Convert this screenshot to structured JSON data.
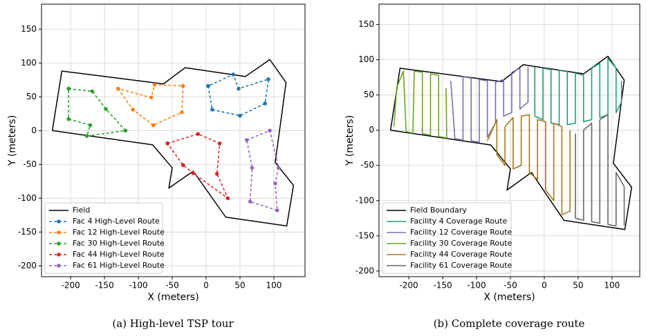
{
  "chart_data": [
    {
      "type": "line",
      "caption": "(a) High-level TSP tour",
      "xlabel": "X (meters)",
      "ylabel": "Y (meters)",
      "xlim": [
        -243,
        146
      ],
      "ylim": [
        -216,
        187
      ],
      "xticks": [
        -200,
        -150,
        -100,
        -50,
        0,
        50,
        100
      ],
      "yticks": [
        -200,
        -150,
        -100,
        -50,
        0,
        50,
        100,
        150
      ],
      "grid": true,
      "legend": "lower left",
      "series": [
        {
          "name": "Field",
          "color": "#000000",
          "linestyle": "solid",
          "marker": "none",
          "x": [
            -227,
            -213,
            -63,
            -31,
            58,
            94,
            118,
            102,
            129,
            119,
            29,
            -19,
            -55,
            -50,
            -79,
            -227
          ],
          "values": [
            0,
            88,
            69,
            93,
            80,
            105,
            71,
            -47,
            -81,
            -141,
            -128,
            -60,
            -85,
            -55,
            -21,
            0
          ]
        },
        {
          "name": "Fac 4 High-Level Route",
          "color": "#1f77b4",
          "linestyle": "dashed",
          "marker": "o",
          "x": [
            3,
            9,
            50,
            87,
            92,
            48,
            40,
            3
          ],
          "values": [
            66,
            31,
            22,
            40,
            76,
            62,
            83,
            66
          ]
        },
        {
          "name": "Fac 12 High-Level Route",
          "color": "#ff7f0e",
          "linestyle": "dashed",
          "marker": "o",
          "x": [
            -130,
            -108,
            -78,
            -36,
            -34,
            -76,
            -81,
            -130
          ],
          "values": [
            62,
            31,
            8,
            27,
            66,
            68,
            49,
            62
          ]
        },
        {
          "name": "Fac 30 High-Level Route",
          "color": "#2ca02c",
          "linestyle": "dashed",
          "marker": "o",
          "x": [
            -203,
            -168,
            -148,
            -119,
            -176,
            -171,
            -203,
            -203
          ],
          "values": [
            62,
            58,
            32,
            0,
            -8,
            8,
            17,
            62
          ]
        },
        {
          "name": "Fac 44 High-Level Route",
          "color": "#d62728",
          "linestyle": "dashed",
          "marker": "o",
          "x": [
            -57,
            -12,
            20,
            16,
            32,
            -19,
            -34,
            -57
          ],
          "values": [
            -19,
            -5,
            -19,
            -64,
            -100,
            -63,
            -51,
            -19
          ]
        },
        {
          "name": "Fac 61 High-Level Route",
          "color": "#9467bd",
          "linestyle": "dashed",
          "marker": "o",
          "x": [
            60,
            94,
            107,
            102,
            105,
            65,
            68,
            60
          ],
          "values": [
            -14,
            0,
            -55,
            -78,
            -118,
            -105,
            -55,
            -14
          ]
        }
      ]
    },
    {
      "type": "line",
      "caption": "(b) Complete coverage route",
      "xlabel": "X (meters)",
      "ylabel": "Y (meters)",
      "xlim": [
        -244,
        141
      ],
      "ylim": [
        -208,
        179
      ],
      "xticks": [
        -200,
        -150,
        -100,
        -50,
        0,
        50,
        100
      ],
      "yticks": [
        -200,
        -150,
        -100,
        -50,
        0,
        50,
        100,
        150
      ],
      "grid": true,
      "legend": "lower left",
      "series": [
        {
          "name": "Field Boundary",
          "color": "#000000",
          "linestyle": "solid",
          "marker": "none",
          "x": [
            -227,
            -213,
            -63,
            -31,
            58,
            94,
            118,
            102,
            129,
            119,
            29,
            -19,
            -55,
            -50,
            -79,
            -227
          ],
          "values": [
            0,
            88,
            69,
            93,
            80,
            105,
            71,
            -47,
            -81,
            -141,
            -128,
            -60,
            -85,
            -55,
            -21,
            0
          ]
        },
        {
          "name": "Facility 4 Coverage Route",
          "color": "#1b9e77",
          "linestyle": "solid",
          "marker": "none",
          "x": [
            -14,
            -14,
            -2,
            -2,
            10,
            10,
            22,
            22,
            34,
            34,
            46,
            46,
            58,
            58,
            70,
            70,
            82,
            82,
            94,
            94,
            106,
            106,
            114,
            114
          ],
          "values": [
            90,
            20,
            15,
            88,
            86,
            10,
            8,
            85,
            83,
            8,
            10,
            81,
            78,
            12,
            15,
            88,
            95,
            18,
            22,
            102,
            88,
            25,
            40,
            70
          ]
        },
        {
          "name": "Facility 12 Coverage Route",
          "color": "#7570b3",
          "linestyle": "solid",
          "marker": "none",
          "x": [
            -138,
            -132,
            -120,
            -120,
            -108,
            -108,
            -96,
            -96,
            -84,
            -84,
            -72,
            -72,
            -60,
            -60,
            -48,
            -48,
            -36,
            -36,
            -24,
            -24
          ],
          "values": [
            70,
            -12,
            -14,
            76,
            74,
            -15,
            -17,
            72,
            70,
            -10,
            10,
            68,
            72,
            20,
            25,
            82,
            88,
            30,
            40,
            90
          ]
        },
        {
          "name": "Facility 30 Coverage Route",
          "color": "#66a61e",
          "linestyle": "solid",
          "marker": "none",
          "x": [
            -222,
            -218,
            -208,
            -204,
            -194,
            -192,
            -180,
            -180,
            -168,
            -168,
            -156,
            -156,
            -144,
            -145
          ],
          "values": [
            5,
            60,
            84,
            -2,
            -4,
            84,
            82,
            -5,
            -7,
            80,
            78,
            -9,
            -11,
            60
          ]
        },
        {
          "name": "Facility 44 Coverage Route",
          "color": "#a6761d",
          "linestyle": "solid",
          "marker": "none",
          "x": [
            -84,
            -70,
            -70,
            -58,
            -58,
            -46,
            -46,
            -34,
            -34,
            -22,
            -22,
            -10,
            -10,
            2,
            2,
            14,
            14,
            26,
            26,
            38,
            38
          ],
          "values": [
            -15,
            15,
            -35,
            -50,
            5,
            18,
            -55,
            -50,
            20,
            22,
            -60,
            -70,
            15,
            12,
            -85,
            -100,
            10,
            5,
            -120,
            -115,
            0
          ]
        },
        {
          "name": "Facility 61 Coverage Route",
          "color": "#666666",
          "linestyle": "solid",
          "marker": "none",
          "x": [
            46,
            46,
            58,
            58,
            70,
            70,
            82,
            82,
            94,
            94,
            106,
            106,
            118,
            118
          ],
          "values": [
            -5,
            -125,
            -128,
            0,
            10,
            -130,
            -132,
            15,
            22,
            -134,
            -136,
            -60,
            -80,
            -135
          ]
        }
      ]
    }
  ]
}
